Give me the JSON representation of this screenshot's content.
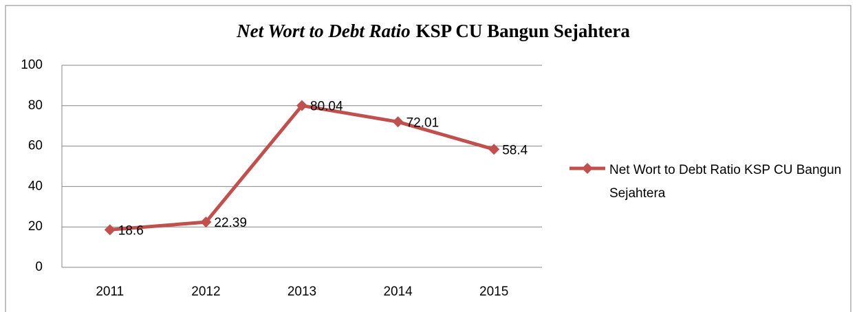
{
  "chart_data": {
    "type": "line",
    "title": [
      "Net Wort to Debt Ratio",
      "KSP CU Bangun Sejahtera"
    ],
    "categories": [
      "2011",
      "2012",
      "2013",
      "2014",
      "2015"
    ],
    "series": [
      {
        "name": "Net Wort to Debt Ratio KSP CU Bangun Sejahtera",
        "color": "#c0504d",
        "values": [
          18.6,
          22.39,
          80.04,
          72.01,
          58.4
        ]
      }
    ],
    "ylim": [
      0,
      100
    ],
    "yticks": [
      0,
      20,
      40,
      60,
      80,
      100
    ],
    "grid": true,
    "legend": "right"
  }
}
